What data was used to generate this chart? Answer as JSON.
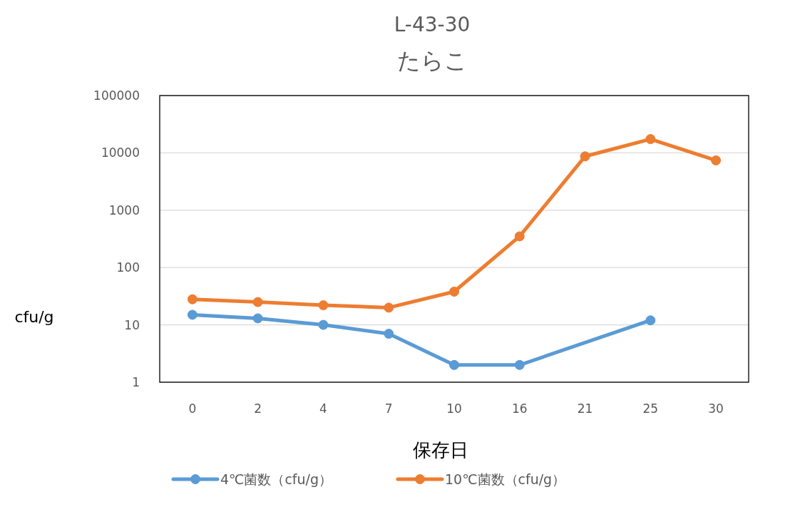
{
  "chart_data": {
    "type": "line",
    "title": "L-43-30",
    "subtitle": "たらこ",
    "xlabel": "保存日",
    "ylabel": "cfu/g",
    "categories": [
      "0",
      "2",
      "4",
      "7",
      "10",
      "16",
      "21",
      "25",
      "30"
    ],
    "series": [
      {
        "name": "4℃菌数（cfu/g）",
        "color": "#5b9bd5",
        "values": [
          15,
          13,
          10,
          7,
          2,
          2,
          null,
          12,
          null
        ]
      },
      {
        "name": "10℃菌数（cfu/g）",
        "color": "#ed7d31",
        "values": [
          28,
          25,
          22,
          20,
          38,
          350,
          8700,
          17400,
          7400
        ]
      }
    ],
    "log": "y",
    "ylim": [
      1,
      100000
    ],
    "yticks": [
      1,
      10,
      100,
      1000,
      10000,
      100000
    ],
    "grid": "y",
    "legend": "bottom",
    "marker": "circle"
  }
}
